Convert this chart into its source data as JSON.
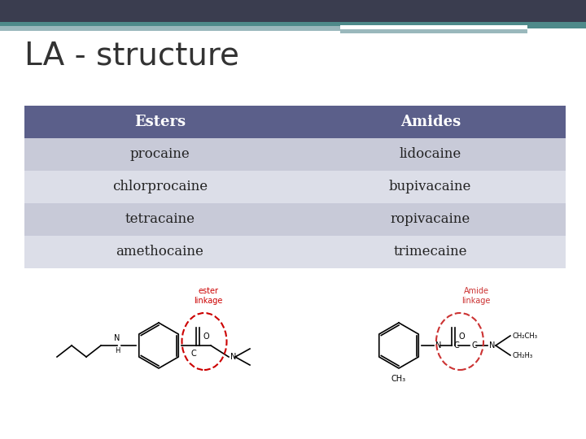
{
  "title": "LA - structure",
  "title_fontsize": 28,
  "title_color": "#333333",
  "header_row": [
    "Esters",
    "Amides"
  ],
  "data_rows": [
    [
      "procaine",
      "lidocaine"
    ],
    [
      "chlorprocaine",
      "bupivacaine"
    ],
    [
      "tetracaine",
      "ropivacaine"
    ],
    [
      "amethocaine",
      "trimecaine"
    ]
  ],
  "header_bg_color": "#5b5f8a",
  "header_text_color": "#ffffff",
  "row_bg_even": "#c8cad8",
  "row_bg_odd": "#dcdee8",
  "cell_text_color": "#222222",
  "bg_color": "#ffffff",
  "ester_label_color": "#cc0000",
  "amide_label_color": "#cc3333",
  "subtitle_bar_dark": "#3a3d4f",
  "subtitle_bar_teal": "#4e8a8a",
  "subtitle_bar_light": "#9ab8bc"
}
